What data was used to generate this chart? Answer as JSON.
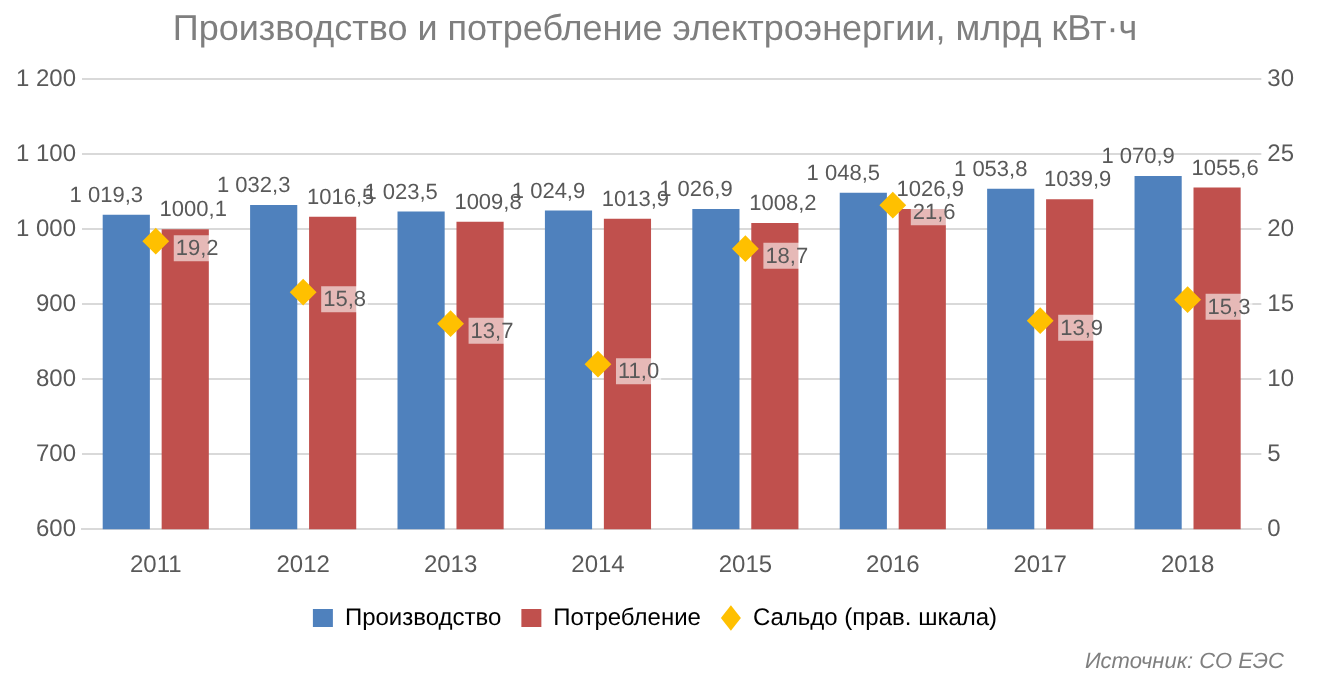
{
  "chart_data": {
    "type": "bar",
    "title": "Производство и потребление электроэнергии, млрд кВт·ч",
    "categories": [
      "2011",
      "2012",
      "2013",
      "2014",
      "2015",
      "2016",
      "2017",
      "2018"
    ],
    "series": [
      {
        "name": "Производство",
        "color": "#4f81bd",
        "values": [
          1019.3,
          1032.3,
          1023.5,
          1024.9,
          1026.9,
          1048.5,
          1053.8,
          1070.9
        ],
        "value_labels": [
          "1 019,3",
          "1 032,3",
          "1 023,5",
          "1 024,9",
          "1 026,9",
          "1 048,5",
          "1 053,8",
          "1 070,9"
        ]
      },
      {
        "name": "Потребление",
        "color": "#c0504d",
        "values": [
          1000.1,
          1016.5,
          1009.8,
          1013.9,
          1008.2,
          1026.9,
          1039.9,
          1055.6
        ],
        "value_labels": [
          "1000,1",
          "1016,5",
          "1009,8",
          "1013,9",
          "1008,2",
          "1026,9",
          "1039,9",
          "1055,6"
        ]
      },
      {
        "name": "Сальдо (прав. шкала)",
        "type": "scatter",
        "axis": "y2",
        "marker": "diamond",
        "color": "#ffc000",
        "values": [
          19.2,
          15.8,
          13.7,
          11.0,
          18.7,
          21.6,
          13.9,
          15.3
        ],
        "value_labels": [
          "19,2",
          "15,8",
          "13,7",
          "11,0",
          "18,7",
          "21,6",
          "13,9",
          "15,3"
        ]
      }
    ],
    "ylim": [
      600,
      1200
    ],
    "yticks": [
      600,
      700,
      800,
      900,
      {
        "value": 1000,
        "label": "1 000"
      },
      {
        "value": 1100,
        "label": "1 100"
      },
      {
        "value": 1200,
        "label": "1 200"
      }
    ],
    "y2lim": [
      0,
      30
    ],
    "y2ticks": [
      0,
      5,
      10,
      15,
      20,
      25,
      30
    ],
    "grid": "y",
    "legend": "bottom",
    "annotations": [
      "Источник: СО ЕЭС"
    ]
  }
}
